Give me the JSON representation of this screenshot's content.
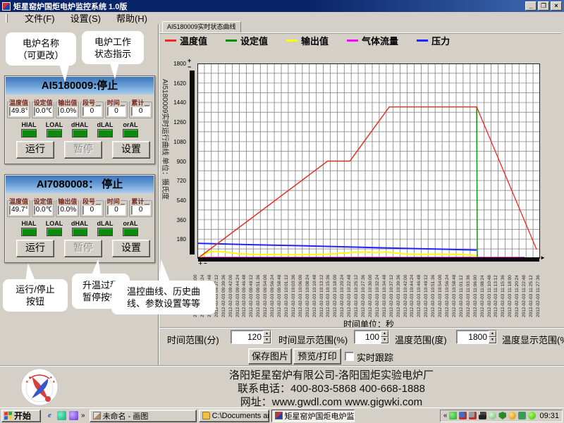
{
  "titlebar": {
    "title": "矩星窑炉国炬电炉监控系统 1.0版",
    "minimize": "_",
    "restore": "❐",
    "close": "×"
  },
  "menubar": {
    "items": [
      "文件(F)",
      "设置(S)",
      "帮助(H)"
    ]
  },
  "callouts": {
    "furnace_name_line1": "电炉名称",
    "furnace_name_line2": "（可更改）",
    "status_line1": "电炉工作",
    "status_line2": "状态指示",
    "run_stop_line1": "运行/停止",
    "run_stop_line2": "按钮",
    "pause_line1": "升温过程",
    "pause_line2": "暂停按钮",
    "settings_line1": "温控曲线、历史曲",
    "settings_line2": "线、参数设置等等"
  },
  "furnaces": [
    {
      "title": "AI5180009:停止",
      "fields": [
        {
          "label": "温度值",
          "value": "49.8℃"
        },
        {
          "label": "设定值",
          "value": "0.0℃"
        },
        {
          "label": "输出值",
          "value": "0.0%"
        },
        {
          "label": "段号",
          "value": "0"
        },
        {
          "label": "时间",
          "value": "0"
        },
        {
          "label": "累计",
          "value": "0"
        }
      ],
      "alarms": [
        "HIAL",
        "LOAL",
        "dHAL",
        "dLAL",
        "orAL"
      ],
      "run_label": "运行",
      "pause_label": "暂停",
      "settings_label": "设置"
    },
    {
      "title": "AI7080008： 停止",
      "fields": [
        {
          "label": "温度值",
          "value": "49.7℃"
        },
        {
          "label": "设定值",
          "value": "0.0℃"
        },
        {
          "label": "输出值",
          "value": "0.0%"
        },
        {
          "label": "段号",
          "value": "0"
        },
        {
          "label": "时间",
          "value": "0"
        },
        {
          "label": "累计",
          "value": "0"
        }
      ],
      "alarms": [
        "HIAL",
        "LOAL",
        "dHAL",
        "dLAL",
        "orAL"
      ],
      "run_label": "运行",
      "pause_label": "暂停",
      "settings_label": "设置"
    }
  ],
  "chart_tab": "AI5180009实时状态曲线",
  "chart_data": {
    "type": "line",
    "ylabel": "AI5180009实时运行曲线 单位：摄氏度",
    "xlabel": "时间单位：秒",
    "ylim": [
      0,
      1800
    ],
    "yticks": [
      1800,
      1620,
      1440,
      1260,
      1080,
      900,
      720,
      540,
      360,
      180
    ],
    "grid": "on",
    "legend_position": "top",
    "legend": [
      {
        "label": "温度值",
        "color": "#ff2222"
      },
      {
        "label": "设定值",
        "color": "#009000"
      },
      {
        "label": "输出值",
        "color": "#ffff00"
      },
      {
        "label": "气体流量",
        "color": "#ff00ff"
      },
      {
        "label": "压力",
        "color": "#2222ff"
      }
    ],
    "series": [
      {
        "name": "气体流量",
        "color": "#ff00ff",
        "width": 2,
        "points": [
          [
            0,
            12
          ],
          [
            95.5,
            12
          ]
        ]
      },
      {
        "name": "压力",
        "color": "#2222ff",
        "width": 2,
        "points": [
          [
            0,
            142
          ],
          [
            15,
            130
          ],
          [
            30,
            120
          ],
          [
            45,
            108
          ],
          [
            60,
            96
          ],
          [
            72,
            88
          ],
          [
            81.5,
            80
          ]
        ]
      },
      {
        "name": "输出值",
        "color": "#ffff00",
        "width": 2,
        "points": [
          [
            0,
            0
          ],
          [
            3,
            58
          ],
          [
            5,
            68
          ],
          [
            8,
            62
          ],
          [
            12,
            46
          ],
          [
            17,
            40
          ],
          [
            24,
            38
          ],
          [
            31,
            37
          ],
          [
            38,
            42
          ],
          [
            44,
            55
          ],
          [
            48,
            62
          ],
          [
            52,
            56
          ],
          [
            55,
            63
          ],
          [
            58,
            52
          ],
          [
            61,
            43
          ],
          [
            66,
            41
          ],
          [
            71,
            43
          ],
          [
            76,
            40
          ],
          [
            81.5,
            30
          ]
        ]
      },
      {
        "name": "设定值",
        "color": "#009000",
        "width": 1.3,
        "points": [
          [
            0,
            0
          ],
          [
            38,
            900
          ],
          [
            44.5,
            900
          ],
          [
            56,
            1400
          ],
          [
            81.5,
            1400
          ],
          [
            81.7,
            0
          ]
        ]
      },
      {
        "name": "温度值",
        "color": "#ff2222",
        "width": 1.3,
        "points": [
          [
            0,
            2
          ],
          [
            38,
            900
          ],
          [
            44.5,
            900
          ],
          [
            56,
            1400
          ],
          [
            81.5,
            1400
          ],
          [
            99,
            85
          ]
        ]
      }
    ],
    "x_labels": [
      "2012-02-03 09:30:00",
      "2012-02-03 09:32:24",
      "2012-02-03 09:34:48",
      "2012-02-03 09:37:12",
      "2012-02-03 09:39:36",
      "2012-02-03 09:42:00",
      "2012-02-03 09:44:24",
      "2012-02-03 09:46:48",
      "2012-02-03 09:49:12",
      "2012-02-03 09:51:36",
      "2012-02-03 09:54:00",
      "2012-02-03 09:56:24",
      "2012-02-03 09:58:48",
      "2012-02-03 10:01:12",
      "2012-02-03 10:03:36",
      "2012-02-03 10:06:00",
      "2012-02-03 10:08:24",
      "2012-02-03 10:10:48",
      "2012-02-03 10:13:12",
      "2012-02-03 10:15:36",
      "2012-02-03 10:18:00",
      "2012-02-03 10:20:24",
      "2012-02-03 10:22:48",
      "2012-02-03 10:25:12",
      "2012-02-03 10:27:36",
      "2012-02-03 10:30:00",
      "2012-02-03 10:32:24",
      "2012-02-03 10:34:48",
      "2012-02-03 10:37:12",
      "2012-02-03 10:39:36",
      "2012-02-03 10:42:00",
      "2012-02-03 10:44:24",
      "2012-02-03 10:46:48",
      "2012-02-03 10:49:12",
      "2012-02-03 10:51:36",
      "2012-02-03 10:54:00",
      "2012-02-03 10:56:24",
      "2012-02-03 10:58:48",
      "2012-02-03 11:01:12",
      "2012-02-03 11:03:36",
      "2012-02-03 11:06:00",
      "2012-02-03 11:08:24",
      "2012-02-03 11:10:48",
      "2012-02-03 11:13:12",
      "2012-02-03 11:15:36",
      "2012-02-03 11:18:00",
      "2012-02-03 11:20:24",
      "2012-02-03 11:22:48",
      "2012-02-03 11:25:12",
      "2012-02-03 11:27:36"
    ]
  },
  "controls": {
    "time_range_label": "时间范围(分)",
    "time_range_value": "120",
    "time_display_label": "时间显示范围(%)",
    "time_display_value": "100",
    "temp_range_label": "温度范围(度)",
    "temp_range_value": "1800",
    "temp_display_label": "温度显示范围(%",
    "save_button": "保存图片",
    "print_button": "预览/打印",
    "track_checkbox": "实时跟踪"
  },
  "footer": {
    "company": "洛阳矩星窑炉有限公司-洛阳国炬实验电炉厂",
    "phone": "联系电话：400-803-5868 400-668-1888",
    "website": "网址：www.gwdl.com  www.gigwki.com"
  },
  "taskbar": {
    "start": "开始",
    "tasks": [
      "未命名 - 画图",
      "C:\\Documents and Se...",
      "矩星窑炉国炬电炉监..."
    ],
    "tray_collapse": "«",
    "clock": "09:31"
  }
}
